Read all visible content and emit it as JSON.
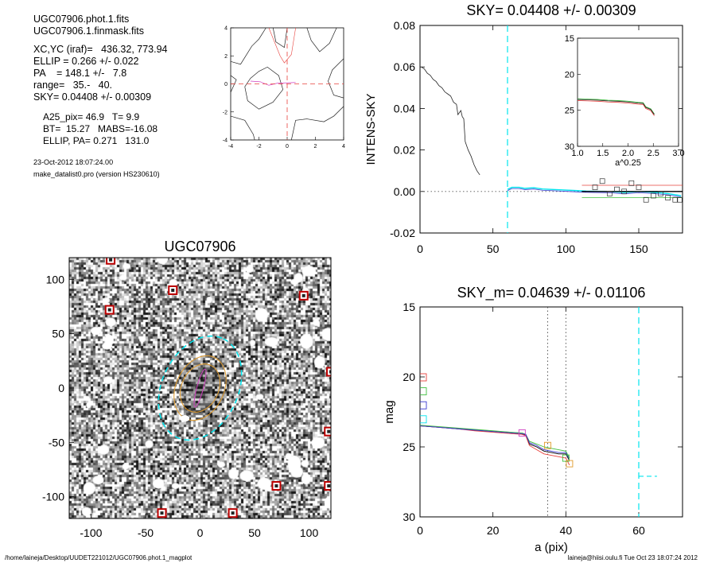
{
  "info": {
    "file1": "UGC07906.phot.1.fits",
    "file2": "UGC07906.1.finmask.fits",
    "xcyc": "XC,YC (iraf)=   436.32, 773.94",
    "ellip": "ELLIP = 0.266 +/- 0.022",
    "pa": "PA    = 148.1 +/-   7.8",
    "range": "range=   35.-   40.",
    "sky": "SKY= 0.04408 +/- 0.00309",
    "a25": "A25_pix= 46.9   T= 9.9",
    "bt": "BT=  15.27   MABS=-16.08",
    "ellip_pa": "ELLIP, PA= 0.271   131.0",
    "date": "23-Oct-2012 18:07:24.00",
    "program": "make_datalist0.pro (version HS230610)"
  },
  "footer": {
    "path": "/home/laineja/Desktop/UUDET221012/UGC07906.phot.1_magplot",
    "user": "laineja@hiisi.oulu.fi  Tue Oct 23 18:07:24 2012"
  },
  "colors": {
    "cyan": "#00e5ee",
    "red": "#e8413c",
    "green": "#3fbf3f",
    "blue": "#3a3ad0",
    "magenta": "#d040c0",
    "orange": "#e09a2a"
  },
  "chart_data": [
    {
      "type": "line",
      "title": "",
      "xlim": [
        -4,
        4
      ],
      "ylim": [
        -4,
        4
      ],
      "xticks": [
        -4,
        -2,
        0,
        2,
        4
      ],
      "yticks": [
        -4,
        -2,
        0,
        2,
        4
      ],
      "crosshair": [
        0,
        0
      ]
    },
    {
      "type": "line",
      "title": "SKY= 0.04408 +/- 0.00309",
      "xlabel": "",
      "ylabel": "INTENS-SKY",
      "xlim": [
        0,
        180
      ],
      "ylim": [
        -0.02,
        0.08
      ],
      "xticks": [
        0,
        50,
        100,
        150
      ],
      "yticks": [
        -0.02,
        0.0,
        0.02,
        0.04,
        0.06,
        0.08
      ],
      "ytick_labels": [
        "-0.02",
        "0.00",
        "0.02",
        "0.04",
        "0.06",
        "0.08"
      ],
      "sky_line_x": 60,
      "profile": [
        [
          1,
          0.06
        ],
        [
          3,
          0.059
        ],
        [
          5,
          0.057
        ],
        [
          7,
          0.056
        ],
        [
          9,
          0.054
        ],
        [
          11,
          0.053
        ],
        [
          13,
          0.051
        ],
        [
          15,
          0.05
        ],
        [
          17,
          0.048
        ],
        [
          19,
          0.047
        ],
        [
          21,
          0.046
        ],
        [
          23,
          0.043
        ],
        [
          25,
          0.042
        ],
        [
          26,
          0.037
        ],
        [
          28,
          0.039
        ],
        [
          29,
          0.036
        ],
        [
          30,
          0.035
        ],
        [
          31,
          0.024
        ],
        [
          33,
          0.02
        ],
        [
          35,
          0.017
        ],
        [
          37,
          0.013
        ],
        [
          39,
          0.01
        ],
        [
          41,
          0.008
        ]
      ],
      "outer_profile": [
        [
          60,
          0.001
        ],
        [
          63,
          0.002
        ],
        [
          68,
          0.002
        ],
        [
          72,
          0.0015
        ],
        [
          78,
          0.0018
        ],
        [
          84,
          0.0012
        ],
        [
          90,
          0.001
        ],
        [
          96,
          0.0008
        ],
        [
          102,
          0.0006
        ],
        [
          108,
          0.0004
        ],
        [
          114,
          0.0002
        ],
        [
          120,
          0.0001
        ],
        [
          130,
          0.0
        ],
        [
          140,
          -0.0005
        ],
        [
          150,
          0.0
        ],
        [
          160,
          -0.0004
        ],
        [
          170,
          -0.001
        ],
        [
          179,
          -0.002
        ]
      ],
      "squares": [
        [
          120,
          0.002
        ],
        [
          125,
          0.005
        ],
        [
          130,
          -0.001
        ],
        [
          135,
          0.001
        ],
        [
          140,
          0.0
        ],
        [
          145,
          0.004
        ],
        [
          150,
          0.002
        ],
        [
          155,
          -0.004
        ],
        [
          160,
          -0.002
        ],
        [
          165,
          -0.001
        ],
        [
          170,
          -0.003
        ],
        [
          175,
          -0.004
        ],
        [
          178,
          -0.004
        ]
      ],
      "inset": {
        "xlabel": "a^0.25",
        "xlim": [
          1.0,
          3.0
        ],
        "ylim": [
          30,
          15
        ],
        "xticks": [
          1.0,
          1.5,
          2.0,
          2.5,
          3.0
        ],
        "xtick_labels": [
          "1.0",
          "1.5",
          "2.0",
          "2.5",
          "3.0"
        ],
        "yticks": [
          15,
          20,
          25,
          30
        ],
        "profile": [
          [
            1.0,
            23.5
          ],
          [
            1.2,
            23.55
          ],
          [
            1.4,
            23.6
          ],
          [
            1.6,
            23.7
          ],
          [
            1.8,
            23.75
          ],
          [
            2.0,
            23.85
          ],
          [
            2.2,
            24.0
          ],
          [
            2.3,
            24.05
          ],
          [
            2.35,
            24.6
          ],
          [
            2.45,
            24.9
          ],
          [
            2.52,
            25.6
          ]
        ]
      }
    },
    {
      "type": "scatter",
      "title": "UGC07906",
      "xlim": [
        -120,
        120
      ],
      "ylim": [
        -120,
        120
      ],
      "xticks": [
        -100,
        -50,
        0,
        50,
        100
      ],
      "yticks": [
        -100,
        -50,
        0,
        50,
        100
      ],
      "masked_stars": [
        [
          -82,
          118
        ],
        [
          -25,
          90
        ],
        [
          95,
          85
        ],
        [
          -83,
          72
        ],
        [
          120,
          15
        ],
        [
          118,
          -40
        ],
        [
          70,
          -90
        ],
        [
          118,
          -90
        ],
        [
          -35,
          -115
        ],
        [
          30,
          -115
        ]
      ],
      "ellipses": [
        {
          "color": "cyan",
          "a": 100,
          "b": 70,
          "angle_deg": 65
        },
        {
          "color": "orange",
          "a": 62,
          "b": 44,
          "angle_deg": 65
        },
        {
          "color": "orange",
          "a": 46,
          "b": 34,
          "angle_deg": 65
        },
        {
          "color": "magenta",
          "a": 36,
          "b": 6,
          "angle_deg": 75
        }
      ]
    },
    {
      "type": "line",
      "title": "SKY_m=  0.04639 +/- 0.01106",
      "xlabel": "a (pix)",
      "ylabel": "mag",
      "xlim": [
        0,
        72
      ],
      "ylim": [
        30,
        15
      ],
      "xticks": [
        0,
        20,
        40,
        60
      ],
      "yticks": [
        15,
        20,
        25,
        30
      ],
      "vlines_dotted": [
        35,
        40
      ],
      "vline_cyan": 60,
      "dash_segment": [
        [
          60,
          27.1
        ],
        [
          65,
          27.1
        ]
      ],
      "profiles": [
        {
          "color": "black",
          "points": [
            [
              0,
              23.5
            ],
            [
              5,
              23.6
            ],
            [
              10,
              23.7
            ],
            [
              15,
              23.8
            ],
            [
              20,
              23.9
            ],
            [
              25,
              24.0
            ],
            [
              28,
              24.1
            ],
            [
              29,
              24.15
            ],
            [
              30,
              24.8
            ],
            [
              32,
              25.0
            ],
            [
              34,
              25.3
            ],
            [
              36,
              25.4
            ],
            [
              38,
              25.5
            ],
            [
              40,
              25.5
            ],
            [
              41,
              26.0
            ]
          ]
        },
        {
          "color": "red",
          "points": [
            [
              0,
              23.5
            ],
            [
              5,
              23.6
            ],
            [
              10,
              23.7
            ],
            [
              15,
              23.85
            ],
            [
              20,
              23.95
            ],
            [
              25,
              24.05
            ],
            [
              28,
              24.1
            ],
            [
              29,
              24.2
            ],
            [
              30,
              24.9
            ],
            [
              32,
              25.2
            ],
            [
              34,
              25.5
            ],
            [
              36,
              25.6
            ],
            [
              38,
              25.7
            ],
            [
              40,
              25.8
            ],
            [
              41,
              26.3
            ]
          ]
        },
        {
          "color": "green",
          "points": [
            [
              0,
              23.45
            ],
            [
              5,
              23.55
            ],
            [
              10,
              23.65
            ],
            [
              15,
              23.75
            ],
            [
              20,
              23.85
            ],
            [
              25,
              23.95
            ],
            [
              28,
              24.0
            ],
            [
              29,
              24.1
            ],
            [
              30,
              24.6
            ],
            [
              32,
              24.8
            ],
            [
              34,
              25.0
            ],
            [
              36,
              25.1
            ],
            [
              38,
              25.2
            ],
            [
              40,
              25.3
            ],
            [
              41,
              25.8
            ]
          ]
        },
        {
          "color": "blue",
          "points": [
            [
              0,
              23.5
            ],
            [
              5,
              23.6
            ],
            [
              10,
              23.7
            ],
            [
              15,
              23.8
            ],
            [
              20,
              23.9
            ],
            [
              25,
              24.0
            ],
            [
              28,
              24.05
            ],
            [
              29,
              24.1
            ],
            [
              30,
              24.7
            ],
            [
              32,
              24.9
            ],
            [
              34,
              25.2
            ],
            [
              36,
              25.3
            ],
            [
              38,
              25.4
            ],
            [
              40,
              25.4
            ],
            [
              41,
              25.9
            ]
          ]
        }
      ],
      "legend_squares": [
        {
          "color": "red",
          "mag": 20
        },
        {
          "color": "green",
          "mag": 21
        },
        {
          "color": "blue",
          "mag": 22
        },
        {
          "color": "cyan",
          "mag": 23
        }
      ],
      "markers": [
        {
          "color": "magenta",
          "a": 28,
          "mag": 24.0
        },
        {
          "color": "orange",
          "a": 35,
          "mag": 24.9
        },
        {
          "color": "green",
          "a": 40,
          "mag": 25.8
        },
        {
          "color": "orange",
          "a": 41,
          "mag": 26.2
        }
      ]
    }
  ]
}
